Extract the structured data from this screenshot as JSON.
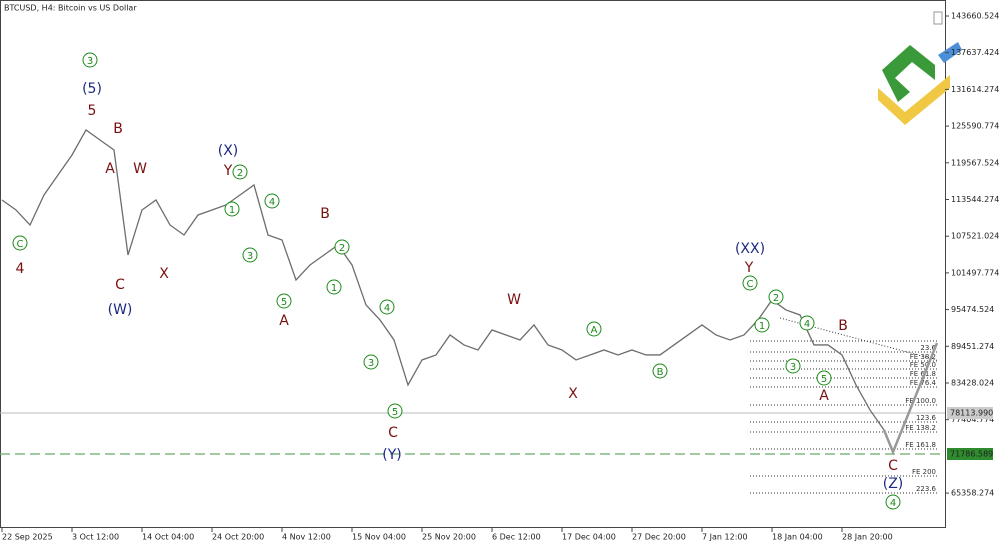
{
  "chart_data": {
    "type": "line",
    "title": "BTCUSD, H4:  Bitcoin vs US Dollar",
    "categories": [
      "22 Sep 2025",
      null,
      null,
      null,
      null,
      "3 Oct 12:00",
      null,
      null,
      null,
      null,
      "14 Oct 04:00",
      null,
      null,
      null,
      null,
      "24 Oct 20:00",
      null,
      null,
      null,
      null,
      "4 Nov 12:00",
      null,
      null,
      null,
      null,
      "15 Nov 04:00",
      null,
      null,
      null,
      null,
      "25 Nov 20:00",
      null,
      null,
      null,
      null,
      "6 Dec 12:00",
      null,
      null,
      null,
      null,
      "17 Dec 04:00",
      null,
      null,
      null,
      null,
      "27 Dec 20:00",
      null,
      null,
      null,
      null,
      "7 Jan 12:00",
      null,
      null,
      null,
      null,
      "18 Jan 04:00",
      null,
      null,
      null,
      null,
      "28 Jan 20:00",
      null,
      null,
      null
    ],
    "series": [
      {
        "name": "BTCUSD",
        "color": "#6d6d6d",
        "values": [
          113466,
          111825,
          109364,
          114286,
          117568,
          120851,
          124953,
          123312,
          121671,
          104440,
          111825,
          113466,
          109364,
          107723,
          111005,
          111825,
          112645,
          114286,
          115927,
          107723,
          106902,
          100338,
          102799,
          104440,
          106081,
          102799,
          96235,
          93774,
          90492,
          83107,
          87210,
          88030,
          91312,
          89671,
          88851,
          92133,
          91312,
          90492,
          92954,
          89671,
          88851,
          87210,
          88030,
          88851,
          88030,
          88851,
          88030,
          88030,
          89671,
          91312,
          92954,
          91312,
          90492,
          91312,
          93774,
          97056,
          95415,
          94595,
          89671,
          89671,
          88030,
          83107,
          79005,
          75723
        ]
      }
    ],
    "ylim": [
      59630,
      146286
    ],
    "yticks": [
      65358.274,
      77404.774,
      83428.024,
      89451.274,
      95474.524,
      101497.774,
      107521.024,
      113544.274,
      119567.524,
      125590.774,
      131614.274,
      137637.424,
      143660.524
    ],
    "price_labels": [
      "78113.990",
      "71786.589"
    ],
    "fib_labels": [
      "23.6",
      "FE 38.2",
      "FE 50.0",
      "FE 61.8",
      "FE 76.4",
      "FE 100.0",
      "123.6",
      "FE 138.2",
      "FE 161.8",
      "FE 200",
      "223.6"
    ],
    "annotations": [
      {
        "text": "3",
        "color": "#1a8a1a",
        "circled": true
      },
      {
        "text": "(5)",
        "color": "#1c2a80"
      },
      {
        "text": "5",
        "color": "#7a1010"
      },
      {
        "text": "B",
        "color": "#7a1010"
      },
      {
        "text": "A",
        "color": "#7a1010"
      },
      {
        "text": "W",
        "color": "#7a1010"
      },
      {
        "text": "C",
        "color": "#7a1010"
      },
      {
        "text": "(W)",
        "color": "#1c2a80"
      },
      {
        "text": "C",
        "color": "#1a8a1a",
        "circled": true
      },
      {
        "text": "4",
        "color": "#7a1010"
      },
      {
        "text": "X",
        "color": "#7a1010"
      },
      {
        "text": "(X)",
        "color": "#1c2a80"
      },
      {
        "text": "Y",
        "color": "#7a1010"
      },
      {
        "text": "2",
        "color": "#1a8a1a",
        "circled": true
      },
      {
        "text": "1",
        "color": "#1a8a1a",
        "circled": true
      },
      {
        "text": "4",
        "color": "#1a8a1a",
        "circled": true
      },
      {
        "text": "3",
        "color": "#1a8a1a",
        "circled": true
      },
      {
        "text": "5",
        "color": "#1a8a1a",
        "circled": true
      },
      {
        "text": "A",
        "color": "#7a1010"
      },
      {
        "text": "B",
        "color": "#7a1010"
      },
      {
        "text": "2",
        "color": "#1a8a1a",
        "circled": true
      },
      {
        "text": "1",
        "color": "#1a8a1a",
        "circled": true
      },
      {
        "text": "4",
        "color": "#1a8a1a",
        "circled": true
      },
      {
        "text": "3",
        "color": "#1a8a1a",
        "circled": true
      },
      {
        "text": "5",
        "color": "#1a8a1a",
        "circled": true
      },
      {
        "text": "C",
        "color": "#7a1010"
      },
      {
        "text": "(Y)",
        "color": "#1c2a80"
      },
      {
        "text": "W",
        "color": "#7a1010"
      },
      {
        "text": "A",
        "color": "#1a8a1a",
        "circled": true
      },
      {
        "text": "B",
        "color": "#1a8a1a",
        "circled": true
      },
      {
        "text": "X",
        "color": "#7a1010"
      },
      {
        "text": "(XX)",
        "color": "#1c2a80"
      },
      {
        "text": "Y",
        "color": "#7a1010"
      },
      {
        "text": "C",
        "color": "#1a8a1a",
        "circled": true
      },
      {
        "text": "2",
        "color": "#1a8a1a",
        "circled": true
      },
      {
        "text": "1",
        "color": "#1a8a1a",
        "circled": true
      },
      {
        "text": "4",
        "color": "#1a8a1a",
        "circled": true
      },
      {
        "text": "3",
        "color": "#1a8a1a",
        "circled": true
      },
      {
        "text": "5",
        "color": "#1a8a1a",
        "circled": true
      },
      {
        "text": "A",
        "color": "#7a1010"
      },
      {
        "text": "B",
        "color": "#7a1010"
      },
      {
        "text": "C",
        "color": "#7a1010"
      },
      {
        "text": "(Z)",
        "color": "#1c2a80"
      },
      {
        "text": "4",
        "color": "#1a8a1a",
        "circled": true
      }
    ]
  }
}
